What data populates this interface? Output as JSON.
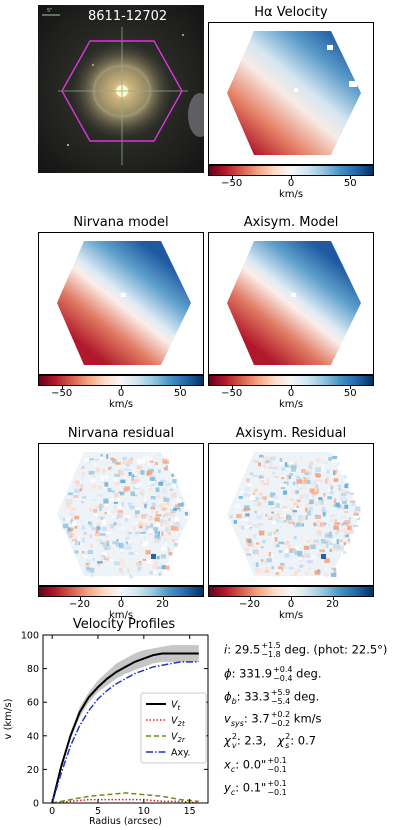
{
  "image_panel": {
    "label": "8611-12702",
    "scale_label": "5\""
  },
  "panels": {
    "halpha": {
      "title": "Hα Velocity"
    },
    "nirvana_model": {
      "title": "Nirvana model"
    },
    "axisym_model": {
      "title": "Axisym. Model"
    },
    "nirvana_residual": {
      "title": "Nirvana residual"
    },
    "axisym_residual": {
      "title": "Axisym. Residual"
    }
  },
  "colorbars": {
    "velocity": {
      "ticks": [
        "−50",
        "0",
        "50"
      ],
      "unit": "km/s",
      "range": [
        -70,
        70
      ]
    },
    "residual": {
      "ticks": [
        "−20",
        "0",
        "20"
      ],
      "unit": "km/s",
      "range": [
        -40,
        40
      ]
    }
  },
  "params": {
    "i": {
      "sym": "i",
      "val": "29.5",
      "sup": "+1.5",
      "sub": "−1.8",
      "suffix": " deg. (phot: 22.5°)"
    },
    "phi": {
      "sym": "ϕ",
      "val": "331.9",
      "sup": "+0.4",
      "sub": "−0.4",
      "suffix": " deg."
    },
    "phib": {
      "sym": "ϕ",
      "subsym": "b",
      "val": "33.3",
      "sup": "+5.9",
      "sub": "−5.4",
      "suffix": " deg."
    },
    "vsys": {
      "sym": "v",
      "subsym": "sys",
      "val": "3.7",
      "sup": "+0.2",
      "sub": "−0.2",
      "suffix": " km/s"
    },
    "chi": {
      "text1": "χ",
      "sub1": "v",
      "sup1": "2",
      "val1": ": 2.3,",
      "text2": "χ",
      "sub2": "s",
      "sup2": "2",
      "val2": ": 0.7"
    },
    "xc": {
      "sym": "x",
      "subsym": "c",
      "val": "0.0\"",
      "sup": "+0.1",
      "sub": "−0.1"
    },
    "yc": {
      "sym": "y",
      "subsym": "c",
      "val": "0.1\"",
      "sup": "+0.1",
      "sub": "−0.1"
    }
  },
  "chart_data": {
    "type": "line",
    "title": "Velocity Profiles",
    "xlabel": "Radius (arcsec)",
    "ylabel": "v (km/s)",
    "xlim": [
      -1,
      17
    ],
    "ylim": [
      0,
      100
    ],
    "xticks": [
      "0",
      "5",
      "10",
      "15"
    ],
    "yticks": [
      "0",
      "20",
      "40",
      "60",
      "80",
      "100"
    ],
    "legend_position": "center-right",
    "series": [
      {
        "name": "V_t",
        "legend": "V",
        "legend_sub": "t",
        "color": "#000000",
        "style": "solid",
        "x": [
          0,
          1,
          2,
          3,
          4,
          5,
          6,
          7,
          8,
          9,
          10,
          11,
          12,
          13,
          14,
          15,
          16
        ],
        "values": [
          0,
          22,
          40,
          54,
          63,
          69,
          74,
          78,
          81,
          84,
          86,
          88,
          89,
          89,
          89,
          89,
          89
        ],
        "band_low": [
          0,
          21,
          38,
          51,
          60,
          66,
          70,
          74,
          77,
          79,
          81,
          83,
          84,
          84,
          84,
          84,
          84
        ],
        "band_high": [
          0,
          23,
          42,
          57,
          66,
          73,
          78,
          83,
          86,
          89,
          91,
          92,
          93,
          94,
          94,
          94,
          94
        ]
      },
      {
        "name": "V_2t",
        "legend": "V",
        "legend_sub": "2t",
        "color": "#e31a1c",
        "style": "dotted",
        "x": [
          0,
          2,
          4,
          6,
          8,
          10,
          12,
          14,
          16
        ],
        "values": [
          0,
          1,
          2,
          2,
          2,
          2,
          1,
          1,
          0
        ]
      },
      {
        "name": "V_2r",
        "legend": "V",
        "legend_sub": "2r",
        "color": "#6a8f1f",
        "style": "dashed",
        "x": [
          0,
          2,
          4,
          6,
          8,
          10,
          12,
          14,
          16
        ],
        "values": [
          0,
          2,
          4,
          5,
          6,
          5,
          4,
          2,
          1
        ]
      },
      {
        "name": "Axy.",
        "legend": "Axy.",
        "legend_sub": "",
        "color": "#1f35c8",
        "style": "dashdot",
        "x": [
          0,
          1,
          2,
          3,
          4,
          5,
          6,
          7,
          8,
          9,
          10,
          11,
          12,
          13,
          14,
          15,
          16
        ],
        "values": [
          0,
          18,
          34,
          46,
          55,
          62,
          67,
          71,
          74,
          77,
          79,
          81,
          82,
          83,
          84,
          84,
          84
        ]
      }
    ]
  }
}
